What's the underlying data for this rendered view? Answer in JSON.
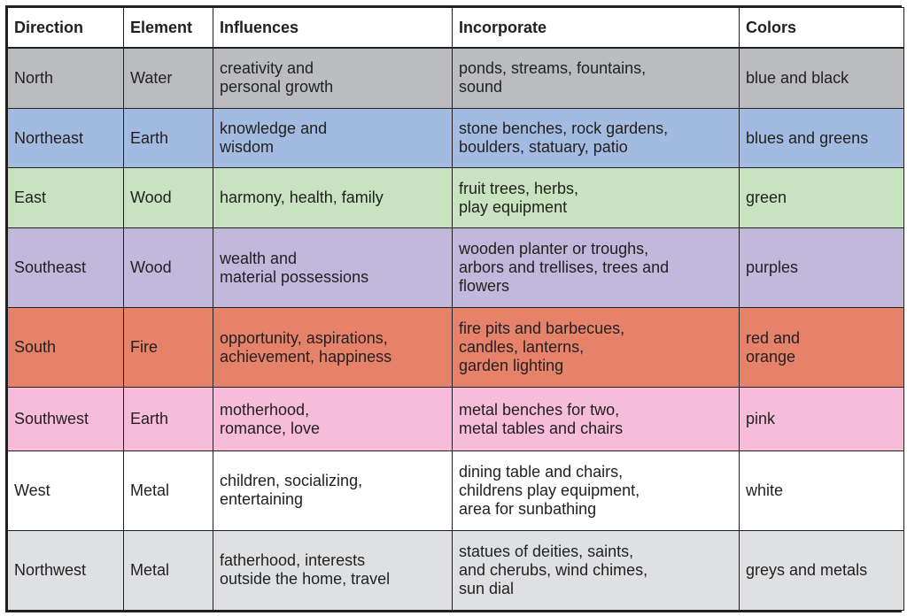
{
  "colors": {
    "North": "#bbbcbf",
    "Northeast": "#a3bbe0",
    "East": "#c7e3bf",
    "Southeast": "#c1b8db",
    "South": "#e7826a",
    "Southwest": "#f7bcd9",
    "West": "#ffffff",
    "Northwest": "#dfe0e2"
  },
  "headers": [
    "Direction",
    "Element",
    "Influences",
    "Incorporate",
    "Colors"
  ],
  "rows": [
    {
      "direction": "North",
      "element": "Water",
      "influences": "creativity and\npersonal growth",
      "incorporate": "ponds, streams, fountains,\nsound",
      "colors": "blue and black"
    },
    {
      "direction": "Northeast",
      "element": "Earth",
      "influences": "knowledge and\nwisdom",
      "incorporate": "stone benches, rock gardens,\nboulders, statuary, patio",
      "colors": "blues and greens"
    },
    {
      "direction": "East",
      "element": "Wood",
      "influences": "harmony, health, family",
      "incorporate": "fruit trees, herbs,\nplay equipment",
      "colors": "green"
    },
    {
      "direction": "Southeast",
      "element": "Wood",
      "influences": "wealth and\nmaterial possessions",
      "incorporate": "wooden planter or troughs,\narbors and trellises, trees and\nflowers",
      "colors": "purples"
    },
    {
      "direction": "South",
      "element": "Fire",
      "influences": "opportunity, aspirations,\nachievement, happiness",
      "incorporate": "fire pits and barbecues,\ncandles, lanterns,\ngarden lighting",
      "colors": "red and\norange"
    },
    {
      "direction": "Southwest",
      "element": "Earth",
      "influences": "motherhood,\nromance, love",
      "incorporate": "metal benches for two,\nmetal tables and chairs",
      "colors": "pink"
    },
    {
      "direction": "West",
      "element": "Metal",
      "influences": "children, socializing,\n entertaining",
      "incorporate": "dining table and chairs,\nchildrens play equipment,\narea for sunbathing",
      "colors": "white"
    },
    {
      "direction": "Northwest",
      "element": "Metal",
      "influences": "fatherhood, interests\noutside the home, travel",
      "incorporate": "statues of deities, saints,\nand cherubs, wind chimes,\nsun dial",
      "colors": "greys and metals"
    }
  ]
}
